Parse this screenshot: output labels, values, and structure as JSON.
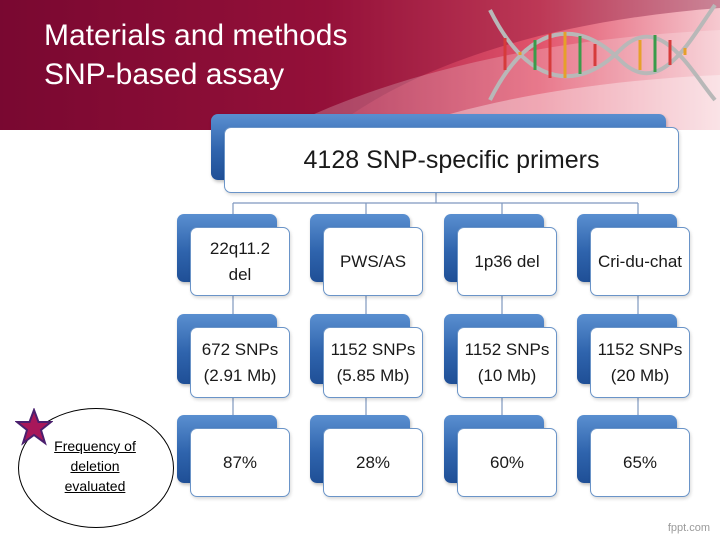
{
  "title": {
    "line1": "Materials and methods",
    "line2": "SNP-based assay"
  },
  "root": {
    "label": "4128 SNP-specific primers"
  },
  "columns": [
    {
      "syndrome": "22q11.2\ndel",
      "snps": "672 SNPs\n(2.91 Mb)",
      "frequency": "87%"
    },
    {
      "syndrome": "PWS/AS",
      "snps": "1152 SNPs\n(5.85 Mb)",
      "frequency": "28%"
    },
    {
      "syndrome": "1p36 del",
      "snps": "1152 SNPs\n(10 Mb)",
      "frequency": "60%"
    },
    {
      "syndrome": "Cri-du-chat",
      "snps": "1152 SNPs\n(20 Mb)",
      "frequency": "65%"
    }
  ],
  "legend": {
    "text": "Frequency of deletion evaluated",
    "icon": "star-icon"
  },
  "footer": "fppt.com",
  "colors": {
    "banner": "#8c0f3a",
    "box": "#2f64ad",
    "star": "#a8175a"
  }
}
